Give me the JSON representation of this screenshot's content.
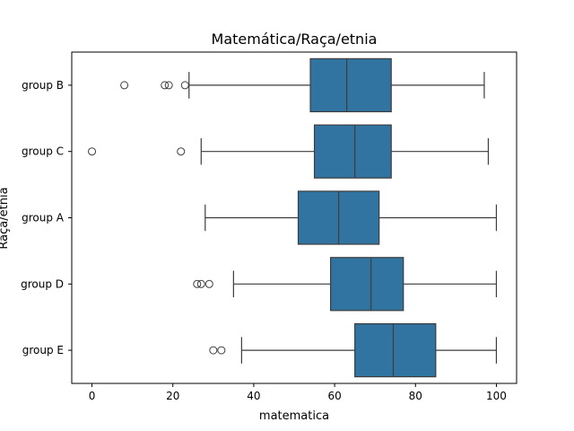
{
  "chart_data": {
    "type": "boxplot",
    "orientation": "horizontal",
    "title": "Matemática/Raça/etnia",
    "xlabel": "matematica",
    "ylabel": "Raça/etnia",
    "xlim": [
      -5,
      105
    ],
    "xticks": [
      0,
      20,
      40,
      60,
      80,
      100
    ],
    "grid": false,
    "box_color": "#3274a1",
    "line_color": "#3d3d3d",
    "categories": [
      "group B",
      "group C",
      "group A",
      "group D",
      "group E"
    ],
    "boxes": [
      {
        "label": "group B",
        "whisker_low": 24,
        "q1": 54,
        "median": 63,
        "q3": 74,
        "whisker_high": 97,
        "outliers": [
          8,
          18,
          19,
          23
        ]
      },
      {
        "label": "group C",
        "whisker_low": 27,
        "q1": 55,
        "median": 65,
        "q3": 74,
        "whisker_high": 98,
        "outliers": [
          0,
          22
        ]
      },
      {
        "label": "group A",
        "whisker_low": 28,
        "q1": 51,
        "median": 61,
        "q3": 71,
        "whisker_high": 100,
        "outliers": []
      },
      {
        "label": "group D",
        "whisker_low": 35,
        "q1": 59,
        "median": 69,
        "q3": 77,
        "whisker_high": 100,
        "outliers": [
          26,
          27,
          29
        ]
      },
      {
        "label": "group E",
        "whisker_low": 37,
        "q1": 65,
        "median": 74.5,
        "q3": 85,
        "whisker_high": 100,
        "outliers": [
          30,
          32
        ]
      }
    ]
  }
}
